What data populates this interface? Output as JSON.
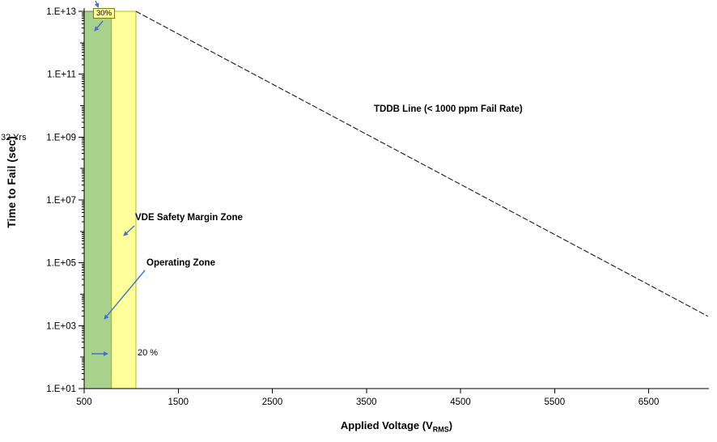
{
  "colors": {
    "background": "#ffffff",
    "axis_color": "#000000",
    "tddb_line_color": "#1a1a1a",
    "arrow_blue": "#4472c4",
    "operating_zone_fill": "#a9d18e",
    "operating_zone_border": "#538135",
    "vde_zone_fill": "#ffff9c",
    "vde_zone_border": "#bfbf00",
    "annotation_box_fill": "#ffff9c",
    "annotation_box_border": "#7f7f00"
  },
  "axis_titles": {
    "y": "Time to Fail (sec)",
    "x_prefix": "Applied Voltage (V",
    "x_sub": "RMS",
    "x_suffix": ")"
  },
  "chart_data": {
    "type": "line",
    "title": "",
    "xlabel": "Applied Voltage (V_RMS)",
    "ylabel": "Time to Fail (sec)",
    "grid": false,
    "legend": "none",
    "x_axis": {
      "scale": "linear",
      "min": 500,
      "max": 7140,
      "ticks": [
        500,
        1500,
        2500,
        3500,
        4500,
        5500,
        6500
      ]
    },
    "y_axis": {
      "scale": "log",
      "min_log10": 1,
      "max_log10": 13,
      "tick_labels": [
        "1.E+13",
        "1.E+11",
        "1.E+09",
        "1.E+07",
        "1.E+05",
        "1.E+03",
        "1.E+01"
      ],
      "tick_logs": [
        13,
        11,
        9,
        7,
        5,
        3,
        1
      ]
    },
    "series": [
      {
        "name": "TDDB Line (< 1000 ppm Fail Rate)",
        "style": "dashed",
        "points": [
          {
            "voltage_vrms": 1050,
            "log10_time_sec": 13
          },
          {
            "voltage_vrms": 7130,
            "log10_time_sec": 3.3
          }
        ]
      }
    ],
    "zones": [
      {
        "name": "Operating Zone",
        "v0": 500,
        "v1": 790,
        "log10t_min": 1,
        "log10t_max": 13,
        "fill": "#a9d18e",
        "border": "#538135"
      },
      {
        "name": "VDE Safety Margin Zone",
        "v0": 790,
        "v1": 1050,
        "log10t_min": 1,
        "log10t_max": 13,
        "fill": "#ffff9c",
        "border": "#bfbf00"
      }
    ],
    "annotations": {
      "top_margin": "30%",
      "side_margin": "20 %",
      "years_marker": "32 Yrs",
      "tddb_line_label": "TDDB Line (< 1000 ppm Fail Rate)",
      "vde_zone_label": "VDE Safety Margin Zone",
      "operating_zone_label": "Operating  Zone"
    }
  }
}
